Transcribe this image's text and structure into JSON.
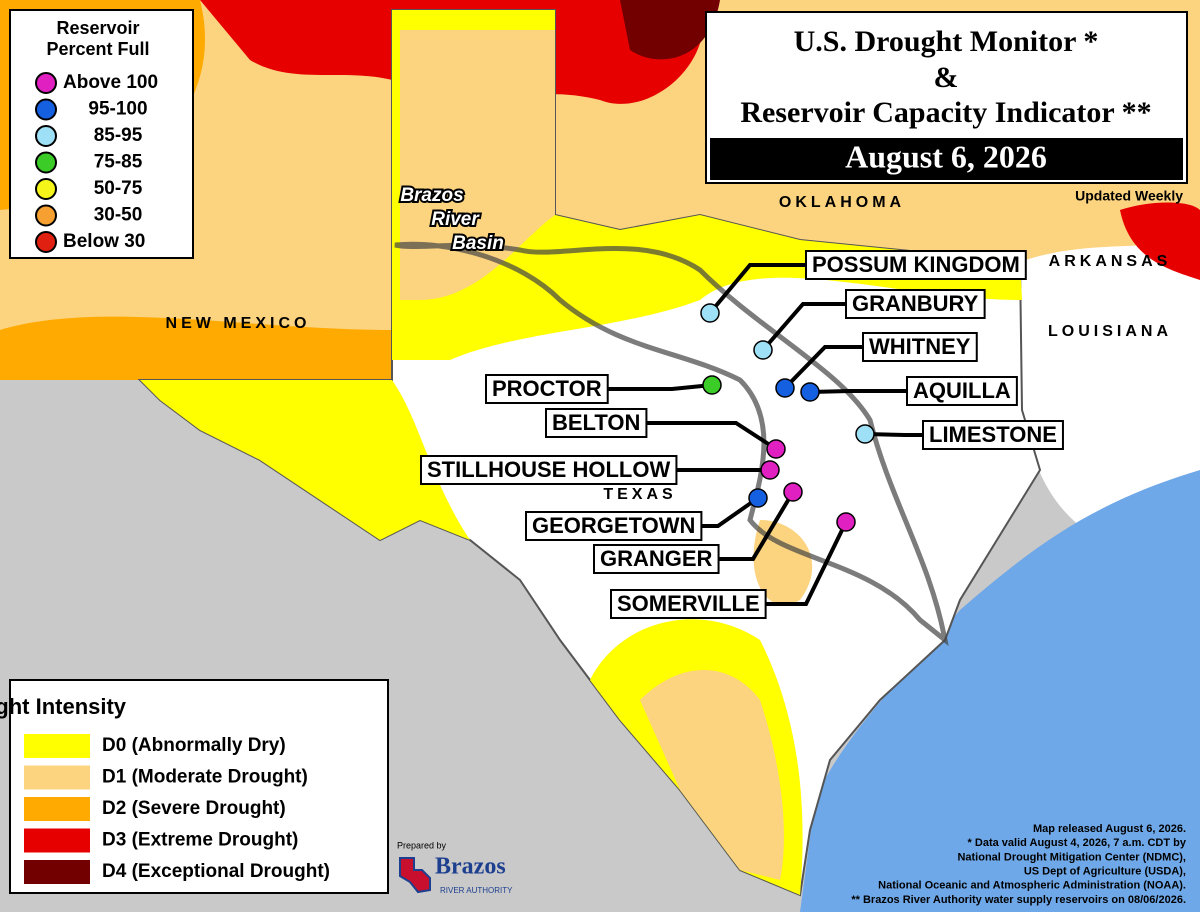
{
  "title": {
    "line1": "U.S. Drought Monitor *",
    "line2": "&",
    "line3": "Reservoir Capacity Indicator **",
    "date": "August 6, 2026",
    "updated": "Updated Weekly"
  },
  "reservoir_legend": {
    "title": [
      "Reservoir",
      "Percent Full"
    ],
    "items": [
      {
        "label": "Above 100",
        "color": "#e020c0"
      },
      {
        "label": "95-100",
        "color": "#1560e0"
      },
      {
        "label": "85-95",
        "color": "#9ee0f5"
      },
      {
        "label": "75-85",
        "color": "#3ccc28"
      },
      {
        "label": "50-75",
        "color": "#f5f51a"
      },
      {
        "label": "30-50",
        "color": "#f5a030"
      },
      {
        "label": "Below 30",
        "color": "#e02010"
      }
    ]
  },
  "drought_legend": {
    "title": "Drought Intensity",
    "items": [
      {
        "label": "D0 (Abnormally Dry)",
        "color": "#ffff00"
      },
      {
        "label": "D1 (Moderate Drought)",
        "color": "#fcd37f"
      },
      {
        "label": "D2 (Severe Drought)",
        "color": "#ffaa00"
      },
      {
        "label": "D3 (Extreme Drought)",
        "color": "#e60000"
      },
      {
        "label": "D4 (Exceptional Drought)",
        "color": "#730000"
      }
    ]
  },
  "map_labels": {
    "new_mexico": "NEW MEXICO",
    "oklahoma": "OKLAHOMA",
    "arkansas": "ARKANSAS",
    "louisiana": "LOUISIANA",
    "texas": "TEXAS",
    "basin": [
      "Brazos",
      "River",
      "Basin"
    ]
  },
  "reservoirs": [
    {
      "name": "POSSUM KINGDOM",
      "color": "#9ee0f5"
    },
    {
      "name": "GRANBURY",
      "color": "#9ee0f5"
    },
    {
      "name": "WHITNEY",
      "color": "#1560e0"
    },
    {
      "name": "AQUILLA",
      "color": "#1560e0"
    },
    {
      "name": "LIMESTONE",
      "color": "#9ee0f5"
    },
    {
      "name": "PROCTOR",
      "color": "#3ccc28"
    },
    {
      "name": "BELTON",
      "color": "#e020c0"
    },
    {
      "name": "STILLHOUSE HOLLOW",
      "color": "#e020c0"
    },
    {
      "name": "GEORGETOWN",
      "color": "#1560e0"
    },
    {
      "name": "GRANGER",
      "color": "#e020c0"
    },
    {
      "name": "SOMERVILLE",
      "color": "#e020c0"
    }
  ],
  "notes": [
    "Map released August 6, 2026.",
    "* Data valid August 4, 2026, 7 a.m. CDT by",
    "National Drought Mitigation Center (NDMC),",
    "US Dept of Agriculture (USDA),",
    "National Oceanic and Atmospheric Administration (NOAA).",
    "** Brazos River Authority water supply reservoirs on 08/06/2026."
  ],
  "logo": {
    "prepared": "Prepared by",
    "name": "Brazos",
    "sub": "RIVER AUTHORITY"
  }
}
